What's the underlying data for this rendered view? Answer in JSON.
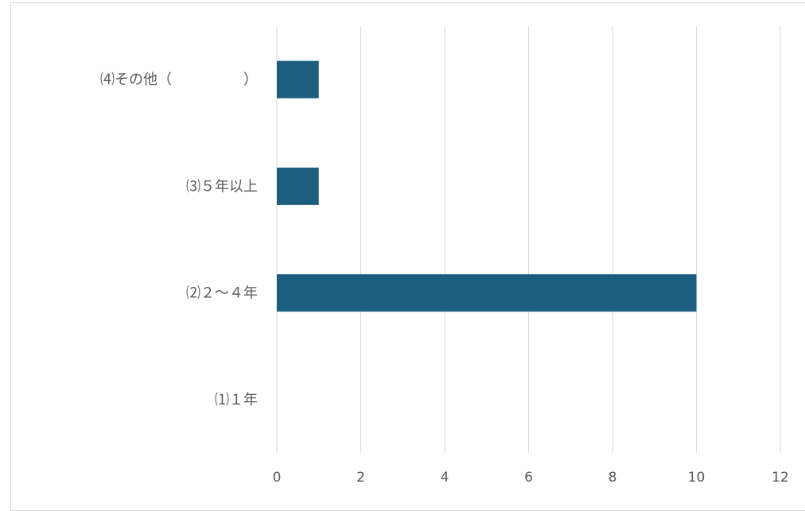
{
  "chart_data": {
    "type": "bar",
    "orientation": "horizontal",
    "categories": [
      "⑴１年",
      "⑵２～４年",
      "⑶５年以上",
      "⑷その他（　　　　　）"
    ],
    "values": [
      0,
      10,
      1,
      1
    ],
    "xlim": [
      0,
      12
    ],
    "x_ticks": [
      0,
      2,
      4,
      6,
      8,
      10,
      12
    ],
    "grid": "vertical",
    "legend": "none",
    "title": "",
    "xlabel": "",
    "ylabel": "",
    "bar_color": "#1b5e80",
    "grid_color": "#d9d9d9",
    "label_color": "#595959"
  }
}
